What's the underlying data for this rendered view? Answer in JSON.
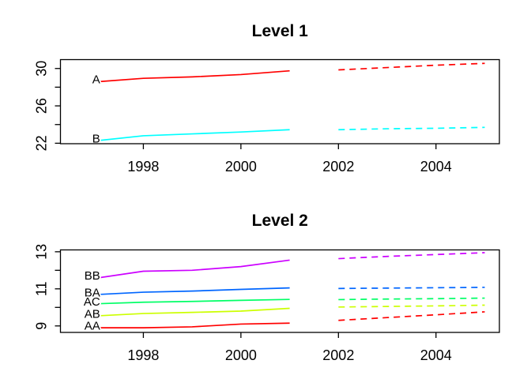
{
  "figure": {
    "background": "#FFFFFF",
    "axis_color": "#000000",
    "text_color": "#000000"
  },
  "chart_data": [
    {
      "type": "line",
      "title": "Level 1",
      "xlabel": "",
      "ylabel": "",
      "xlim": [
        1996.3,
        2005.3
      ],
      "ylim": [
        21.95,
        30.95
      ],
      "x_ticks": [
        1998,
        2000,
        2002,
        2004
      ],
      "x_tick_labels": [
        "1998",
        "2000",
        "2002",
        "2004"
      ],
      "y_ticks": [
        22,
        24,
        26,
        28,
        30
      ],
      "y_labeled_ticks": [
        22,
        26,
        30
      ],
      "y_tick_labels": [
        "22",
        "26",
        "30"
      ],
      "grid": false,
      "legend": "inline-labels-at-line-start",
      "solid_years": [
        1997,
        1998,
        1999,
        2000,
        2001
      ],
      "dashed_years": [
        2002,
        2003,
        2004,
        2005
      ],
      "series": [
        {
          "name": "A",
          "color": "#FF0000",
          "solid_style": "solid",
          "dashed_style": "dashed",
          "solid": [
            28.6,
            28.95,
            29.1,
            29.35,
            29.75
          ],
          "dashed": [
            29.85,
            30.1,
            30.35,
            30.55
          ]
        },
        {
          "name": "B",
          "color": "#00FFFF",
          "solid_style": "solid",
          "dashed_style": "dashed",
          "solid": [
            22.3,
            22.8,
            23.0,
            23.2,
            23.45
          ],
          "dashed": [
            23.45,
            23.55,
            23.6,
            23.7
          ]
        }
      ]
    },
    {
      "type": "line",
      "title": "Level 2",
      "xlabel": "",
      "ylabel": "",
      "xlim": [
        1996.3,
        2005.3
      ],
      "ylim": [
        8.65,
        13.1
      ],
      "x_ticks": [
        1998,
        2000,
        2002,
        2004
      ],
      "x_tick_labels": [
        "1998",
        "2000",
        "2002",
        "2004"
      ],
      "y_ticks": [
        9,
        10,
        11,
        12,
        13
      ],
      "y_labeled_ticks": [
        9,
        11,
        13
      ],
      "y_tick_labels": [
        "9",
        "11",
        "13"
      ],
      "grid": false,
      "legend": "inline-labels-at-line-start",
      "solid_years": [
        1997,
        1998,
        1999,
        2000,
        2001
      ],
      "dashed_years": [
        2002,
        2003,
        2004,
        2005
      ],
      "series": [
        {
          "name": "BB",
          "color": "#CC00FF",
          "solid_style": "solid",
          "dashed_style": "dashed",
          "solid": [
            11.6,
            11.95,
            12.0,
            12.2,
            12.55
          ],
          "dashed": [
            12.63,
            12.75,
            12.85,
            12.95
          ]
        },
        {
          "name": "BA",
          "color": "#0066FF",
          "solid_style": "solid",
          "dashed_style": "dashed",
          "solid": [
            10.7,
            10.82,
            10.88,
            10.97,
            11.05
          ],
          "dashed": [
            11.02,
            11.04,
            11.06,
            11.08
          ]
        },
        {
          "name": "AC",
          "color": "#00FF66",
          "solid_style": "solid",
          "dashed_style": "dashed",
          "solid": [
            10.2,
            10.28,
            10.32,
            10.38,
            10.43
          ],
          "dashed": [
            10.42,
            10.45,
            10.47,
            10.5
          ]
        },
        {
          "name": "AB",
          "color": "#CCFF00",
          "solid_style": "solid",
          "dashed_style": "dashed",
          "solid": [
            9.55,
            9.67,
            9.73,
            9.8,
            9.95
          ],
          "dashed": [
            10.02,
            10.05,
            10.08,
            10.12
          ]
        },
        {
          "name": "AA",
          "color": "#FF0000",
          "solid_style": "solid",
          "dashed_style": "dashed",
          "solid": [
            8.9,
            8.9,
            8.95,
            9.1,
            9.15
          ],
          "dashed": [
            9.3,
            9.45,
            9.6,
            9.76
          ]
        }
      ]
    }
  ]
}
